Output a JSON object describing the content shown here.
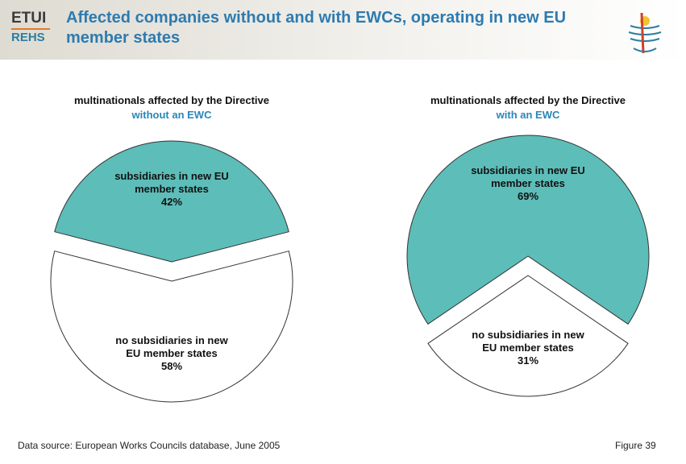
{
  "header": {
    "logo_top": "ETUI",
    "logo_bottom": "REHS",
    "title": "Affected companies without and with EWCs, operating in new EU member states"
  },
  "chart_data": [
    {
      "type": "pie",
      "title": "multinationals affected by the Directive",
      "subtitle": "without an EWC",
      "categories": [
        "subsidiaries in new EU member states",
        "no subsidiaries in new EU member states"
      ],
      "values": [
        42,
        58
      ],
      "value_labels": [
        "42%",
        "58%"
      ],
      "colors": [
        "#5dbdb9",
        "#ffffff"
      ]
    },
    {
      "type": "pie",
      "title": "multinationals affected by the Directive",
      "subtitle": "with an EWC",
      "categories": [
        "subsidiaries in new EU member states",
        "no subsidiaries in new EU member states"
      ],
      "values": [
        69,
        31
      ],
      "value_labels": [
        "69%",
        "31%"
      ],
      "colors": [
        "#5dbdb9",
        "#ffffff"
      ]
    }
  ],
  "footer": {
    "source": "Data source: European Works Councils database, June 2005",
    "figure": "Figure 39"
  }
}
